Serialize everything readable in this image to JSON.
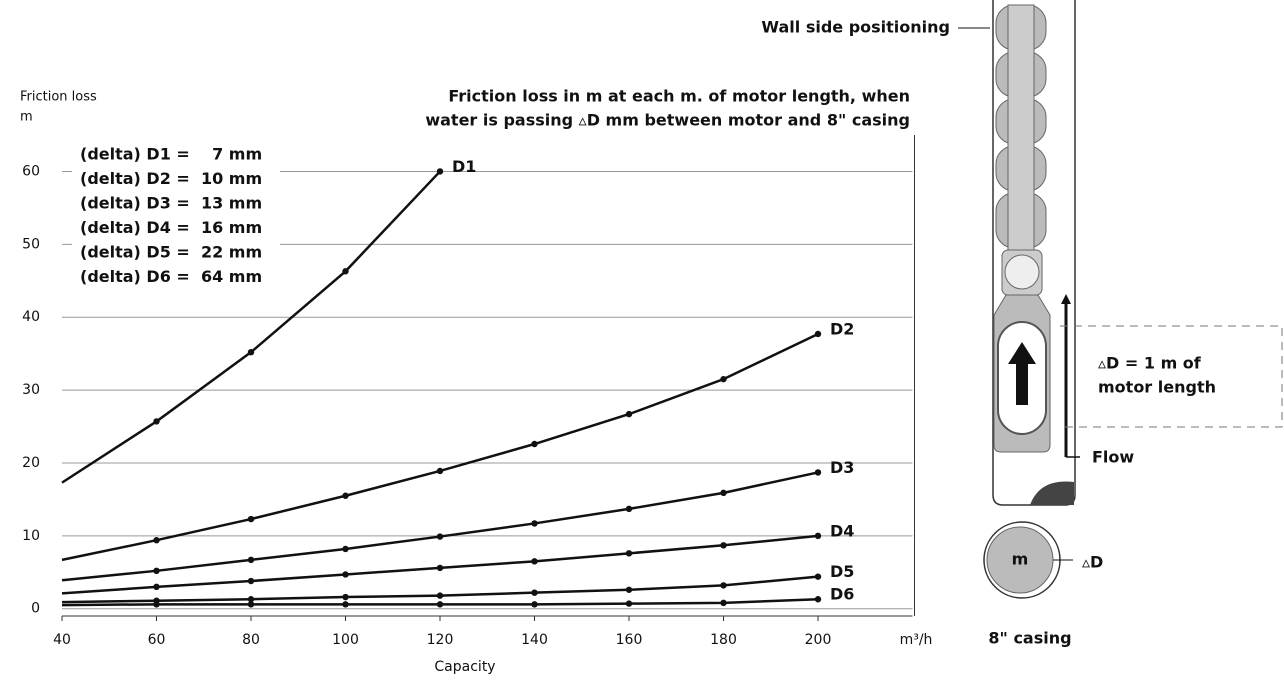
{
  "chart_data": {
    "type": "line",
    "title": [
      "Friction loss in m at each m. of motor length, when",
      "water is passing ▵D mm between motor and 8\" casing"
    ],
    "y_label": [
      "Friction loss",
      "m"
    ],
    "x_label": "Capacity",
    "x_unit": "m³/h",
    "legend": [
      "(delta) D1 =    7 mm",
      "(delta) D2 =  10 mm",
      "(delta) D3 =  13 mm",
      "(delta) D4 =  16 mm",
      "(delta) D5 =  22 mm",
      "(delta) D6 =  64 mm"
    ],
    "x": [
      40,
      60,
      80,
      100,
      120,
      140,
      160,
      180,
      200
    ],
    "series": [
      {
        "name": "D1",
        "color": "#111111",
        "values": [
          17.3,
          25.7,
          35.2,
          46.3,
          60,
          null,
          null,
          null,
          null
        ]
      },
      {
        "name": "D2",
        "color": "#111111",
        "values": [
          6.7,
          9.4,
          12.3,
          15.5,
          18.9,
          22.6,
          26.7,
          31.5,
          37.7
        ]
      },
      {
        "name": "D3",
        "color": "#111111",
        "values": [
          3.9,
          5.2,
          6.7,
          8.2,
          9.9,
          11.7,
          13.7,
          15.9,
          18.7
        ]
      },
      {
        "name": "D4",
        "color": "#111111",
        "values": [
          2.1,
          3,
          3.8,
          4.7,
          5.6,
          6.5,
          7.6,
          8.7,
          10
        ]
      },
      {
        "name": "D5",
        "color": "#111111",
        "values": [
          0.9,
          1.1,
          1.3,
          1.6,
          1.8,
          2.2,
          2.6,
          3.2,
          4.4
        ]
      },
      {
        "name": "D6",
        "color": "#111111",
        "values": [
          0.5,
          0.6,
          0.6,
          0.6,
          0.6,
          0.6,
          0.7,
          0.8,
          1.3
        ]
      }
    ],
    "xlim": [
      40,
      220
    ],
    "xticks": [
      40,
      60,
      80,
      100,
      120,
      140,
      160,
      180,
      200
    ],
    "ylim": [
      -1,
      65
    ],
    "yticks": [
      0,
      10,
      20,
      30,
      40,
      50,
      60
    ],
    "grid": true
  },
  "illustration": {
    "wall_label": "Wall side positioning",
    "delta_label": [
      "▵D = 1 m of",
      "motor length"
    ],
    "flow_label": "Flow",
    "motor_label": "m",
    "gap_label": "▵D",
    "casing_label": "8\" casing"
  }
}
